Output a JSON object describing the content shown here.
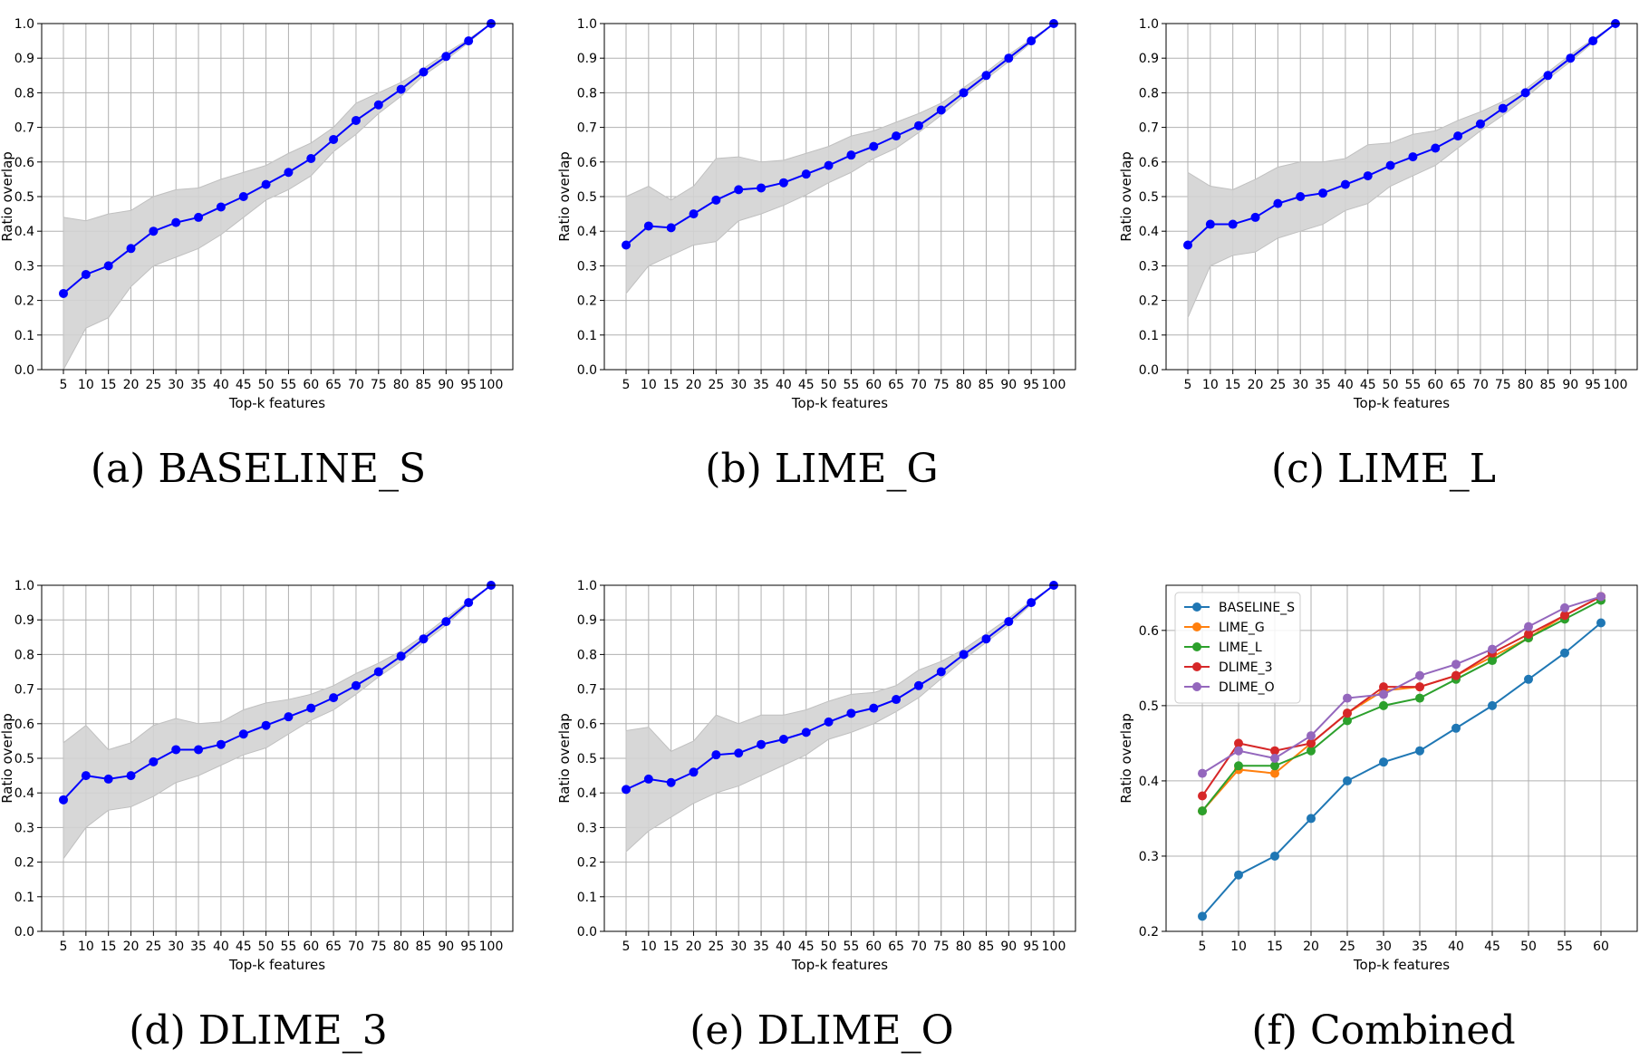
{
  "panels": [
    {
      "caption": "(a) BASELINE_S"
    },
    {
      "caption": "(b) LIME_G"
    },
    {
      "caption": "(c) LIME_L"
    },
    {
      "caption": "(d) DLIME_3"
    },
    {
      "caption": "(e) DLIME_O"
    },
    {
      "caption": "(f) Combined"
    }
  ],
  "chart_data": [
    {
      "type": "line",
      "xlabel": "Top-k features",
      "ylabel": "Ratio overlap",
      "ylim": [
        0,
        1
      ],
      "yticks": [
        "0.0",
        "0.1",
        "0.2",
        "0.3",
        "0.4",
        "0.5",
        "0.6",
        "0.7",
        "0.8",
        "0.9",
        "1.0"
      ],
      "x": [
        5,
        10,
        15,
        20,
        25,
        30,
        35,
        40,
        45,
        50,
        55,
        60,
        65,
        70,
        75,
        80,
        85,
        90,
        95,
        100
      ],
      "xticks": [
        "5",
        "10",
        "15",
        "20",
        "25",
        "30",
        "35",
        "40",
        "45",
        "50",
        "55",
        "60",
        "65",
        "70",
        "75",
        "80",
        "85",
        "90",
        "95",
        "100"
      ],
      "grid": true,
      "line_color": "#0000ff",
      "band_color": "#d3d3d3",
      "values": [
        0.22,
        0.275,
        0.3,
        0.35,
        0.4,
        0.425,
        0.44,
        0.47,
        0.5,
        0.535,
        0.57,
        0.61,
        0.665,
        0.72,
        0.765,
        0.81,
        0.86,
        0.905,
        0.95,
        1.0
      ],
      "lower": [
        0.0,
        0.12,
        0.15,
        0.24,
        0.3,
        0.325,
        0.35,
        0.39,
        0.44,
        0.49,
        0.52,
        0.56,
        0.63,
        0.68,
        0.74,
        0.79,
        0.85,
        0.895,
        0.945,
        1.0
      ],
      "upper": [
        0.44,
        0.43,
        0.45,
        0.46,
        0.5,
        0.52,
        0.525,
        0.55,
        0.57,
        0.59,
        0.625,
        0.655,
        0.7,
        0.77,
        0.8,
        0.83,
        0.87,
        0.915,
        0.955,
        1.0
      ]
    },
    {
      "type": "line",
      "xlabel": "Top-k features",
      "ylabel": "Ratio overlap",
      "ylim": [
        0,
        1
      ],
      "yticks": [
        "0.0",
        "0.1",
        "0.2",
        "0.3",
        "0.4",
        "0.5",
        "0.6",
        "0.7",
        "0.8",
        "0.9",
        "1.0"
      ],
      "x": [
        5,
        10,
        15,
        20,
        25,
        30,
        35,
        40,
        45,
        50,
        55,
        60,
        65,
        70,
        75,
        80,
        85,
        90,
        95,
        100
      ],
      "xticks": [
        "5",
        "10",
        "15",
        "20",
        "25",
        "30",
        "35",
        "40",
        "45",
        "50",
        "55",
        "60",
        "65",
        "70",
        "75",
        "80",
        "85",
        "90",
        "95",
        "100"
      ],
      "grid": true,
      "line_color": "#0000ff",
      "band_color": "#d3d3d3",
      "values": [
        0.36,
        0.415,
        0.41,
        0.45,
        0.49,
        0.52,
        0.525,
        0.54,
        0.565,
        0.59,
        0.62,
        0.645,
        0.675,
        0.705,
        0.75,
        0.8,
        0.85,
        0.9,
        0.95,
        1.0
      ],
      "lower": [
        0.22,
        0.3,
        0.33,
        0.36,
        0.37,
        0.43,
        0.45,
        0.475,
        0.505,
        0.54,
        0.57,
        0.61,
        0.64,
        0.685,
        0.735,
        0.79,
        0.84,
        0.89,
        0.945,
        1.0
      ],
      "upper": [
        0.5,
        0.53,
        0.49,
        0.53,
        0.61,
        0.615,
        0.6,
        0.605,
        0.625,
        0.645,
        0.675,
        0.69,
        0.715,
        0.74,
        0.77,
        0.815,
        0.86,
        0.91,
        0.955,
        1.0
      ]
    },
    {
      "type": "line",
      "xlabel": "Top-k features",
      "ylabel": "Ratio overlap",
      "ylim": [
        0,
        1
      ],
      "yticks": [
        "0.0",
        "0.1",
        "0.2",
        "0.3",
        "0.4",
        "0.5",
        "0.6",
        "0.7",
        "0.8",
        "0.9",
        "1.0"
      ],
      "x": [
        5,
        10,
        15,
        20,
        25,
        30,
        35,
        40,
        45,
        50,
        55,
        60,
        65,
        70,
        75,
        80,
        85,
        90,
        95,
        100
      ],
      "xticks": [
        "5",
        "10",
        "15",
        "20",
        "25",
        "30",
        "35",
        "40",
        "45",
        "50",
        "55",
        "60",
        "65",
        "70",
        "75",
        "80",
        "85",
        "90",
        "95",
        "100"
      ],
      "grid": true,
      "line_color": "#0000ff",
      "band_color": "#d3d3d3",
      "values": [
        0.36,
        0.42,
        0.42,
        0.44,
        0.48,
        0.5,
        0.51,
        0.535,
        0.56,
        0.59,
        0.615,
        0.64,
        0.675,
        0.71,
        0.755,
        0.8,
        0.85,
        0.9,
        0.95,
        1.0
      ],
      "lower": [
        0.15,
        0.3,
        0.33,
        0.34,
        0.38,
        0.4,
        0.42,
        0.46,
        0.48,
        0.53,
        0.56,
        0.59,
        0.64,
        0.69,
        0.735,
        0.785,
        0.84,
        0.89,
        0.945,
        1.0
      ],
      "upper": [
        0.57,
        0.53,
        0.52,
        0.55,
        0.585,
        0.6,
        0.6,
        0.61,
        0.65,
        0.655,
        0.68,
        0.69,
        0.72,
        0.745,
        0.775,
        0.81,
        0.86,
        0.91,
        0.955,
        1.0
      ]
    },
    {
      "type": "line",
      "xlabel": "Top-k features",
      "ylabel": "Ratio overlap",
      "ylim": [
        0,
        1
      ],
      "yticks": [
        "0.0",
        "0.1",
        "0.2",
        "0.3",
        "0.4",
        "0.5",
        "0.6",
        "0.7",
        "0.8",
        "0.9",
        "1.0"
      ],
      "x": [
        5,
        10,
        15,
        20,
        25,
        30,
        35,
        40,
        45,
        50,
        55,
        60,
        65,
        70,
        75,
        80,
        85,
        90,
        95,
        100
      ],
      "xticks": [
        "5",
        "10",
        "15",
        "20",
        "25",
        "30",
        "35",
        "40",
        "45",
        "50",
        "55",
        "60",
        "65",
        "70",
        "75",
        "80",
        "85",
        "90",
        "95",
        "100"
      ],
      "grid": true,
      "line_color": "#0000ff",
      "band_color": "#d3d3d3",
      "values": [
        0.38,
        0.45,
        0.44,
        0.45,
        0.49,
        0.525,
        0.525,
        0.54,
        0.57,
        0.595,
        0.62,
        0.645,
        0.675,
        0.71,
        0.75,
        0.795,
        0.845,
        0.895,
        0.95,
        1.0
      ],
      "lower": [
        0.21,
        0.3,
        0.35,
        0.36,
        0.39,
        0.43,
        0.45,
        0.48,
        0.51,
        0.53,
        0.57,
        0.61,
        0.64,
        0.685,
        0.735,
        0.78,
        0.835,
        0.885,
        0.945,
        1.0
      ],
      "upper": [
        0.545,
        0.595,
        0.525,
        0.545,
        0.595,
        0.615,
        0.6,
        0.605,
        0.64,
        0.66,
        0.67,
        0.685,
        0.71,
        0.745,
        0.775,
        0.81,
        0.855,
        0.905,
        0.955,
        1.0
      ]
    },
    {
      "type": "line",
      "xlabel": "Top-k features",
      "ylabel": "Ratio overlap",
      "ylim": [
        0,
        1
      ],
      "yticks": [
        "0.0",
        "0.1",
        "0.2",
        "0.3",
        "0.4",
        "0.5",
        "0.6",
        "0.7",
        "0.8",
        "0.9",
        "1.0"
      ],
      "x": [
        5,
        10,
        15,
        20,
        25,
        30,
        35,
        40,
        45,
        50,
        55,
        60,
        65,
        70,
        75,
        80,
        85,
        90,
        95,
        100
      ],
      "xticks": [
        "5",
        "10",
        "15",
        "20",
        "25",
        "30",
        "35",
        "40",
        "45",
        "50",
        "55",
        "60",
        "65",
        "70",
        "75",
        "80",
        "85",
        "90",
        "95",
        "100"
      ],
      "grid": true,
      "line_color": "#0000ff",
      "band_color": "#d3d3d3",
      "values": [
        0.41,
        0.44,
        0.43,
        0.46,
        0.51,
        0.515,
        0.54,
        0.555,
        0.575,
        0.605,
        0.63,
        0.645,
        0.67,
        0.71,
        0.75,
        0.8,
        0.845,
        0.895,
        0.95,
        1.0
      ],
      "lower": [
        0.23,
        0.29,
        0.33,
        0.37,
        0.4,
        0.42,
        0.45,
        0.48,
        0.51,
        0.555,
        0.575,
        0.6,
        0.635,
        0.675,
        0.73,
        0.785,
        0.835,
        0.885,
        0.945,
        1.0
      ],
      "upper": [
        0.58,
        0.59,
        0.52,
        0.55,
        0.625,
        0.6,
        0.625,
        0.625,
        0.64,
        0.665,
        0.685,
        0.69,
        0.71,
        0.755,
        0.78,
        0.815,
        0.86,
        0.905,
        0.955,
        1.0
      ]
    },
    {
      "type": "line",
      "xlabel": "Top-k features",
      "ylabel": "Ratio overlap",
      "ylim": [
        0.2,
        0.66
      ],
      "yticks": [
        "0.2",
        "0.3",
        "0.4",
        "0.5",
        "0.6"
      ],
      "x": [
        5,
        10,
        15,
        20,
        25,
        30,
        35,
        40,
        45,
        50,
        55,
        60
      ],
      "xticks": [
        "5",
        "10",
        "15",
        "20",
        "25",
        "30",
        "35",
        "40",
        "45",
        "50",
        "55",
        "60"
      ],
      "grid": true,
      "legend": "upper-left",
      "series": [
        {
          "name": "BASELINE_S",
          "color": "#1f77b4",
          "values": [
            0.22,
            0.275,
            0.3,
            0.35,
            0.4,
            0.425,
            0.44,
            0.47,
            0.5,
            0.535,
            0.57,
            0.61
          ]
        },
        {
          "name": "LIME_G",
          "color": "#ff7f0e",
          "values": [
            0.36,
            0.415,
            0.41,
            0.45,
            0.49,
            0.52,
            0.525,
            0.54,
            0.565,
            0.59,
            0.62,
            0.645
          ]
        },
        {
          "name": "LIME_L",
          "color": "#2ca02c",
          "values": [
            0.36,
            0.42,
            0.42,
            0.44,
            0.48,
            0.5,
            0.51,
            0.535,
            0.56,
            0.59,
            0.615,
            0.64
          ]
        },
        {
          "name": "DLIME_3",
          "color": "#d62728",
          "values": [
            0.38,
            0.45,
            0.44,
            0.45,
            0.49,
            0.525,
            0.525,
            0.54,
            0.57,
            0.595,
            0.62,
            0.645
          ]
        },
        {
          "name": "DLIME_O",
          "color": "#9467bd",
          "values": [
            0.41,
            0.44,
            0.43,
            0.46,
            0.51,
            0.515,
            0.54,
            0.555,
            0.575,
            0.605,
            0.63,
            0.645
          ]
        }
      ]
    }
  ]
}
